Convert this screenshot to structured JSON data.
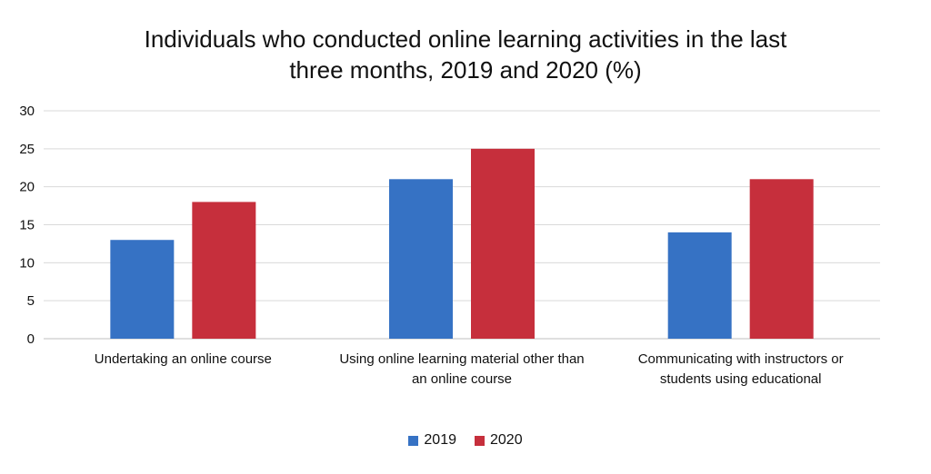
{
  "chart_data": {
    "type": "bar",
    "title_lines": [
      "Individuals who conducted online learning activities in the last",
      "three months, 2019 and 2020 (%)"
    ],
    "categories": [
      [
        "Undertaking an online course"
      ],
      [
        "Using online learning material other than",
        "an online course"
      ],
      [
        "Communicating with instructors or",
        "students using educational"
      ]
    ],
    "series": [
      {
        "name": "2019",
        "color": "#3672c4",
        "values": [
          13,
          21,
          14
        ]
      },
      {
        "name": "2020",
        "color": "#c62f3c",
        "values": [
          18,
          25,
          21
        ]
      }
    ],
    "ylim": [
      0,
      30
    ],
    "yticks": [
      0,
      5,
      10,
      15,
      20,
      25,
      30
    ],
    "grid": true,
    "legend_position": "bottom"
  }
}
